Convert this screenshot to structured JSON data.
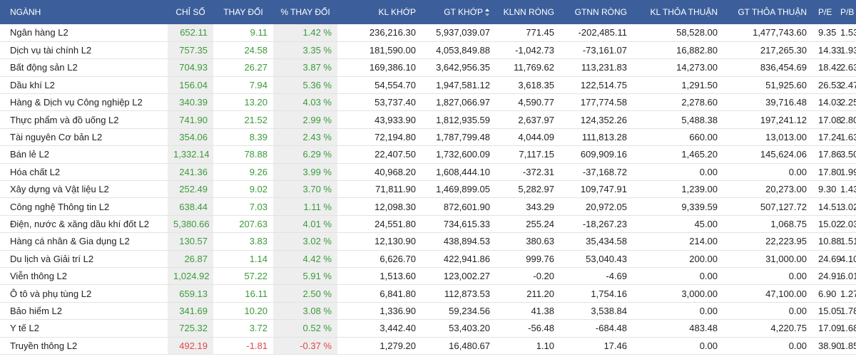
{
  "header": {
    "nganh": "NGÀNH",
    "chi_so": "CHỈ SỐ",
    "thay_doi": "THAY ĐỔI",
    "pct_thay_doi": "% THAY ĐỔI",
    "kl_khop": "KL KHỚP",
    "gt_khop": "GT KHỚP",
    "klnn_rong": "KLNN RÒNG",
    "gtnn_rong": "GTNN RÒNG",
    "kl_thoa_thuan": "KL THỎA THUẬN",
    "gt_thoa_thuan": "GT THỎA THUẬN",
    "pe": "P/E",
    "pb": "P/B"
  },
  "sort_icon": "sort-arrows-icon",
  "colors": {
    "header_bg": "#3c5f9b",
    "up": "#3a9b3a",
    "down": "#e04848",
    "shade": "#eeeeee"
  },
  "rows": [
    {
      "name": "Ngân hàng L2",
      "chi_so": "652.11",
      "thay_doi": "9.11",
      "pct": "1.42 %",
      "kl_khop": "236,216.30",
      "gt_khop": "5,937,039.07",
      "klnn": "771.45",
      "gtnn": "-202,485.11",
      "kl_tt": "58,528.00",
      "gt_tt": "1,477,743.60",
      "pe": "9.35",
      "pb": "1.53",
      "dir": "up"
    },
    {
      "name": "Dịch vụ tài chính L2",
      "chi_so": "757.35",
      "thay_doi": "24.58",
      "pct": "3.35 %",
      "kl_khop": "181,590.00",
      "gt_khop": "4,053,849.88",
      "klnn": "-1,042.73",
      "gtnn": "-73,161.07",
      "kl_tt": "16,882.80",
      "gt_tt": "217,265.30",
      "pe": "14.33",
      "pb": "1.93",
      "dir": "up"
    },
    {
      "name": "Bất động sản L2",
      "chi_so": "704.93",
      "thay_doi": "26.27",
      "pct": "3.87 %",
      "kl_khop": "169,386.10",
      "gt_khop": "3,642,956.35",
      "klnn": "11,769.62",
      "gtnn": "113,231.83",
      "kl_tt": "14,273.00",
      "gt_tt": "836,454.69",
      "pe": "18.42",
      "pb": "2.63",
      "dir": "up"
    },
    {
      "name": "Dầu khí L2",
      "chi_so": "156.04",
      "thay_doi": "7.94",
      "pct": "5.36 %",
      "kl_khop": "54,554.70",
      "gt_khop": "1,947,581.12",
      "klnn": "3,618.35",
      "gtnn": "122,514.75",
      "kl_tt": "1,291.50",
      "gt_tt": "51,925.60",
      "pe": "26.53",
      "pb": "2.47",
      "dir": "up"
    },
    {
      "name": "Hàng & Dịch vụ Công nghiệp L2",
      "chi_so": "340.39",
      "thay_doi": "13.20",
      "pct": "4.03 %",
      "kl_khop": "53,737.40",
      "gt_khop": "1,827,066.97",
      "klnn": "4,590.77",
      "gtnn": "177,774.58",
      "kl_tt": "2,278.60",
      "gt_tt": "39,716.48",
      "pe": "14.03",
      "pb": "2.25",
      "dir": "up"
    },
    {
      "name": "Thực phẩm và đồ uống L2",
      "chi_so": "741.90",
      "thay_doi": "21.52",
      "pct": "2.99 %",
      "kl_khop": "43,933.90",
      "gt_khop": "1,812,935.59",
      "klnn": "2,637.97",
      "gtnn": "124,352.26",
      "kl_tt": "5,488.38",
      "gt_tt": "197,241.12",
      "pe": "17.08",
      "pb": "2.80",
      "dir": "up"
    },
    {
      "name": "Tài nguyên Cơ bản L2",
      "chi_so": "354.06",
      "thay_doi": "8.39",
      "pct": "2.43 %",
      "kl_khop": "72,194.80",
      "gt_khop": "1,787,799.48",
      "klnn": "4,044.09",
      "gtnn": "111,813.28",
      "kl_tt": "660.00",
      "gt_tt": "13,013.00",
      "pe": "17.24",
      "pb": "1.63",
      "dir": "up"
    },
    {
      "name": "Bán lẻ L2",
      "chi_so": "1,332.14",
      "thay_doi": "78.88",
      "pct": "6.29 %",
      "kl_khop": "22,407.50",
      "gt_khop": "1,732,600.09",
      "klnn": "7,117.15",
      "gtnn": "609,909.16",
      "kl_tt": "1,465.20",
      "gt_tt": "145,624.06",
      "pe": "17.86",
      "pb": "3.50",
      "dir": "up"
    },
    {
      "name": "Hóa chất L2",
      "chi_so": "241.36",
      "thay_doi": "9.26",
      "pct": "3.99 %",
      "kl_khop": "40,968.20",
      "gt_khop": "1,608,444.10",
      "klnn": "-372.31",
      "gtnn": "-37,168.72",
      "kl_tt": "0.00",
      "gt_tt": "0.00",
      "pe": "17.80",
      "pb": "1.99",
      "dir": "up"
    },
    {
      "name": "Xây dựng và Vật liệu L2",
      "chi_so": "252.49",
      "thay_doi": "9.02",
      "pct": "3.70 %",
      "kl_khop": "71,811.90",
      "gt_khop": "1,469,899.05",
      "klnn": "5,282.97",
      "gtnn": "109,747.91",
      "kl_tt": "1,239.00",
      "gt_tt": "20,273.00",
      "pe": "9.30",
      "pb": "1.43",
      "dir": "up"
    },
    {
      "name": "Công nghệ Thông tin L2",
      "chi_so": "638.44",
      "thay_doi": "7.03",
      "pct": "1.11 %",
      "kl_khop": "12,098.30",
      "gt_khop": "872,601.90",
      "klnn": "343.29",
      "gtnn": "20,972.05",
      "kl_tt": "9,339.59",
      "gt_tt": "507,127.72",
      "pe": "14.51",
      "pb": "3.02",
      "dir": "up"
    },
    {
      "name": "Điện, nước & xăng dầu khí đốt L2",
      "chi_so": "5,380.66",
      "thay_doi": "207.63",
      "pct": "4.01 %",
      "kl_khop": "24,551.80",
      "gt_khop": "734,615.33",
      "klnn": "255.24",
      "gtnn": "-18,267.23",
      "kl_tt": "45.00",
      "gt_tt": "1,068.75",
      "pe": "15.02",
      "pb": "2.03",
      "dir": "up"
    },
    {
      "name": "Hàng cá nhân & Gia dụng L2",
      "chi_so": "130.57",
      "thay_doi": "3.83",
      "pct": "3.02 %",
      "kl_khop": "12,130.90",
      "gt_khop": "438,894.53",
      "klnn": "380.63",
      "gtnn": "35,434.58",
      "kl_tt": "214.00",
      "gt_tt": "22,223.95",
      "pe": "10.88",
      "pb": "1.51",
      "dir": "up"
    },
    {
      "name": "Du lịch và Giải trí L2",
      "chi_so": "26.87",
      "thay_doi": "1.14",
      "pct": "4.42 %",
      "kl_khop": "6,626.70",
      "gt_khop": "422,941.86",
      "klnn": "999.76",
      "gtnn": "53,040.43",
      "kl_tt": "200.00",
      "gt_tt": "31,000.00",
      "pe": "24.69",
      "pb": "4.10",
      "dir": "up"
    },
    {
      "name": "Viễn thông L2",
      "chi_so": "1,024.92",
      "thay_doi": "57.22",
      "pct": "5.91 %",
      "kl_khop": "1,513.60",
      "gt_khop": "123,002.27",
      "klnn": "-0.20",
      "gtnn": "-4.69",
      "kl_tt": "0.00",
      "gt_tt": "0.00",
      "pe": "24.91",
      "pb": "6.01",
      "dir": "up"
    },
    {
      "name": "Ô tô và phụ tùng L2",
      "chi_so": "659.13",
      "thay_doi": "16.11",
      "pct": "2.50 %",
      "kl_khop": "6,841.80",
      "gt_khop": "112,873.53",
      "klnn": "211.20",
      "gtnn": "1,754.16",
      "kl_tt": "3,000.00",
      "gt_tt": "47,100.00",
      "pe": "6.90",
      "pb": "1.27",
      "dir": "up"
    },
    {
      "name": "Bảo hiểm L2",
      "chi_so": "341.69",
      "thay_doi": "10.20",
      "pct": "3.08 %",
      "kl_khop": "1,336.90",
      "gt_khop": "59,234.56",
      "klnn": "41.38",
      "gtnn": "3,538.84",
      "kl_tt": "0.00",
      "gt_tt": "0.00",
      "pe": "15.05",
      "pb": "1.78",
      "dir": "up"
    },
    {
      "name": "Y tế L2",
      "chi_so": "725.32",
      "thay_doi": "3.72",
      "pct": "0.52 %",
      "kl_khop": "3,442.40",
      "gt_khop": "53,403.20",
      "klnn": "-56.48",
      "gtnn": "-684.48",
      "kl_tt": "483.48",
      "gt_tt": "4,220.75",
      "pe": "17.09",
      "pb": "1.68",
      "dir": "up"
    },
    {
      "name": "Truyền thông L2",
      "chi_so": "492.19",
      "thay_doi": "-1.81",
      "pct": "-0.37 %",
      "kl_khop": "1,279.20",
      "gt_khop": "16,480.67",
      "klnn": "1.10",
      "gtnn": "17.46",
      "kl_tt": "0.00",
      "gt_tt": "0.00",
      "pe": "38.90",
      "pb": "1.85",
      "dir": "down"
    }
  ]
}
